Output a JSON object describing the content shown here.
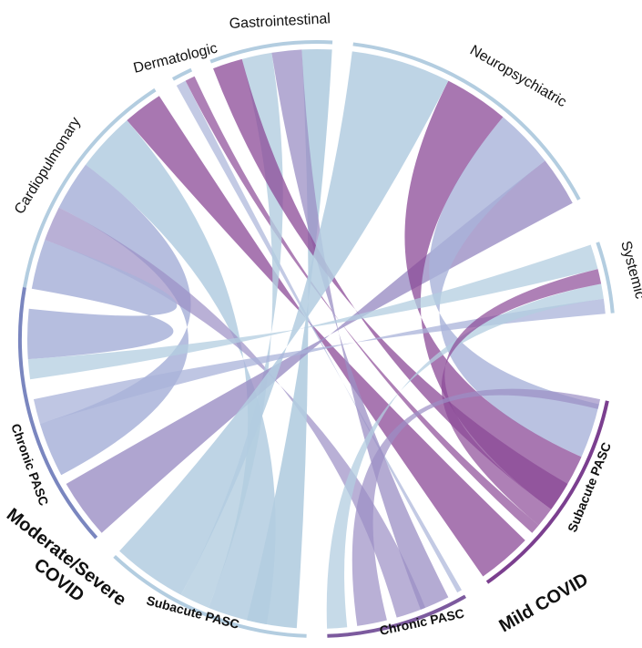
{
  "colors": {
    "light_blue": "#b3cde0",
    "medium_purple": "#9b8fc4",
    "deep_purple": "#8b4a97",
    "lavender": "#a9b3d9"
  },
  "segments": {
    "cardiopulmonary": "Cardiopulmonary",
    "dermatologic": "Dermatologic",
    "gastrointestinal": "Gastrointestinal",
    "neuropsychiatric": "Neuropsychiatric",
    "systemic": "Systemic",
    "subacute_pasc_right": "Subacute PASC",
    "chronic_pasc_bottom": "Chronic PASC",
    "subacute_pasc_left": "Subacute PASC",
    "chronic_pasc_left": "Chronic PASC"
  },
  "groups": {
    "mild": "Mild COVID",
    "moderate_severe_line1": "Moderate/Severe",
    "moderate_severe_line2": "COVID"
  }
}
